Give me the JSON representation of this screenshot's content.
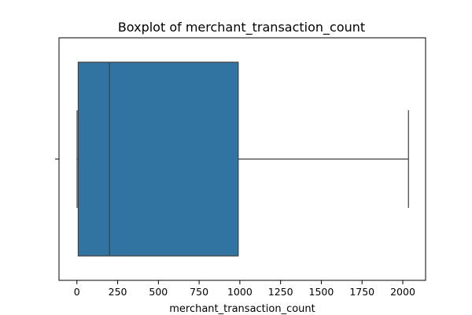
{
  "chart_data": {
    "type": "boxplot",
    "title": "Boxplot of merchant_transaction_count",
    "xlabel": "merchant_transaction_count",
    "ylabel": "",
    "xlim": [
      -110,
      2140
    ],
    "x_ticks": [
      0,
      250,
      500,
      750,
      1000,
      1250,
      1500,
      1750,
      2000
    ],
    "x_tick_labels": [
      "0",
      "250",
      "500",
      "750",
      "1000",
      "1250",
      "1500",
      "1750",
      "2000"
    ],
    "orientation": "horizontal",
    "grid": false,
    "legend": "none",
    "box": {
      "min": 1,
      "q1": 8,
      "median": 200,
      "q3": 990,
      "max": 2035
    },
    "colors": {
      "box_fill": "#3274a1",
      "line": "#3f3f3f",
      "axis": "#000000"
    }
  }
}
